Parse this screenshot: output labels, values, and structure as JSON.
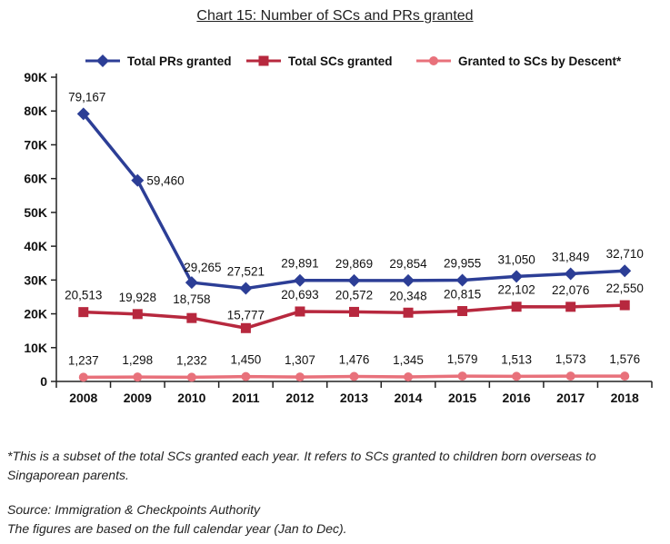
{
  "title": "Chart 15: Number of SCs and PRs granted",
  "footnote": "*This is a subset of the total SCs granted each year. It refers to SCs granted to children born overseas to Singaporean parents.",
  "source": "Source: Immigration & Checkpoints Authority",
  "figures_note": "The figures are based on the full calendar year (Jan to Dec).",
  "chart_data": {
    "type": "line",
    "title": "Chart 15: Number of SCs and PRs granted",
    "categories": [
      "2008",
      "2009",
      "2010",
      "2011",
      "2012",
      "2013",
      "2014",
      "2015",
      "2016",
      "2017",
      "2018"
    ],
    "ylim": [
      0,
      90000
    ],
    "yticks": [
      0,
      10000,
      20000,
      30000,
      40000,
      50000,
      60000,
      70000,
      80000,
      90000
    ],
    "ytick_labels": [
      "0",
      "10K",
      "20K",
      "30K",
      "40K",
      "50K",
      "60K",
      "70K",
      "80K",
      "90K"
    ],
    "grid": false,
    "legend_position": "top",
    "series": [
      {
        "name": "Total PRs granted",
        "marker": "diamond",
        "color": "#2c3e96",
        "values": [
          79167,
          59460,
          29265,
          27521,
          29891,
          29869,
          29854,
          29955,
          31050,
          31849,
          32710
        ],
        "labels": [
          "79,167",
          "59,460",
          "29,265",
          "27,521",
          "29,891",
          "29,869",
          "29,854",
          "29,955",
          "31,050",
          "31,849",
          "32,710"
        ]
      },
      {
        "name": "Total SCs granted",
        "marker": "square",
        "color": "#b7283e",
        "values": [
          20513,
          19928,
          18758,
          15777,
          20693,
          20572,
          20348,
          20815,
          22102,
          22076,
          22550
        ],
        "labels": [
          "20,513",
          "19,928",
          "18,758",
          "15,777",
          "20,693",
          "20,572",
          "20,348",
          "20,815",
          "22,102",
          "22,076",
          "22,550"
        ]
      },
      {
        "name": "Granted to SCs by Descent*",
        "marker": "circle",
        "color": "#e8717b",
        "values": [
          1237,
          1298,
          1232,
          1450,
          1307,
          1476,
          1345,
          1579,
          1513,
          1573,
          1576
        ],
        "labels": [
          "1,237",
          "1,298",
          "1,232",
          "1,450",
          "1,307",
          "1,476",
          "1,345",
          "1,579",
          "1,513",
          "1,573",
          "1,576"
        ]
      }
    ]
  }
}
